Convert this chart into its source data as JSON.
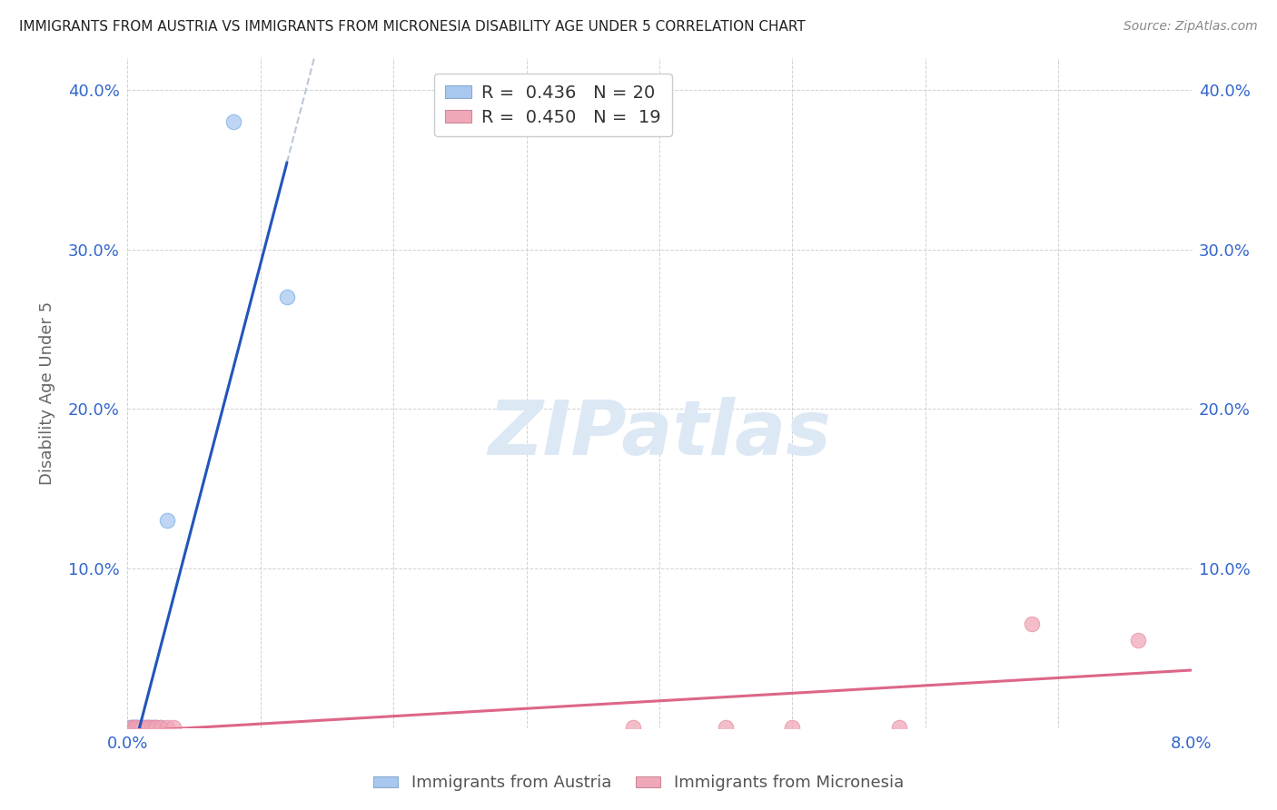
{
  "title": "IMMIGRANTS FROM AUSTRIA VS IMMIGRANTS FROM MICRONESIA DISABILITY AGE UNDER 5 CORRELATION CHART",
  "source": "Source: ZipAtlas.com",
  "ylabel": "Disability Age Under 5",
  "legend_austria": "R =  0.436   N = 20",
  "legend_micronesia": "R =  0.450   N =  19",
  "legend_label_austria": "Immigrants from Austria",
  "legend_label_micronesia": "Immigrants from Micronesia",
  "austria_color": "#a8c8f0",
  "micronesia_color": "#f0a8b8",
  "austria_line_color": "#2255bb",
  "micronesia_line_color": "#dd6688",
  "austria_scatter_x": [
    0.0002,
    0.0003,
    0.0004,
    0.0005,
    0.0006,
    0.0007,
    0.0008,
    0.001,
    0.0011,
    0.0012,
    0.0014,
    0.0015,
    0.0016,
    0.0018,
    0.002,
    0.0022,
    0.0025,
    0.003,
    0.008,
    0.012
  ],
  "austria_scatter_y": [
    0.0005,
    0.0005,
    0.0005,
    0.0005,
    0.0005,
    0.0005,
    0.0005,
    0.0005,
    0.0005,
    0.0005,
    0.0005,
    0.0005,
    0.0005,
    0.0005,
    0.0005,
    0.0005,
    0.0005,
    0.13,
    0.38,
    0.27
  ],
  "micronesia_scatter_x": [
    0.0003,
    0.0005,
    0.0007,
    0.0009,
    0.0011,
    0.0014,
    0.0016,
    0.0018,
    0.002,
    0.0022,
    0.0025,
    0.003,
    0.0035,
    0.038,
    0.045,
    0.05,
    0.058,
    0.068,
    0.076
  ],
  "micronesia_scatter_y": [
    0.0005,
    0.0005,
    0.0005,
    0.0005,
    0.0005,
    0.0005,
    0.0005,
    0.0005,
    0.0005,
    0.0005,
    0.0005,
    0.0005,
    0.0005,
    0.0005,
    0.0005,
    0.0005,
    0.0005,
    0.065,
    0.055
  ],
  "xlim": [
    0.0,
    0.08
  ],
  "ylim": [
    0.0,
    0.42
  ],
  "yticks": [
    0.0,
    0.1,
    0.2,
    0.3,
    0.4
  ],
  "ytick_labels_left": [
    "",
    "10.0%",
    "20.0%",
    "30.0%",
    "40.0%"
  ],
  "ytick_labels_right": [
    "",
    "10.0%",
    "20.0%",
    "30.0%",
    "40.0%"
  ],
  "xticks": [
    0.0,
    0.01,
    0.02,
    0.03,
    0.04,
    0.05,
    0.06,
    0.07,
    0.08
  ],
  "xtick_labels": [
    "0.0%",
    "",
    "",
    "",
    "",
    "",
    "",
    "",
    "8.0%"
  ],
  "background_color": "#ffffff",
  "grid_color": "#cccccc",
  "tick_label_color": "#3366cc",
  "ylabel_color": "#666666",
  "watermark_text": "ZIPatlas",
  "watermark_color": "#dde8f5",
  "title_color": "#222222",
  "source_color": "#888888"
}
